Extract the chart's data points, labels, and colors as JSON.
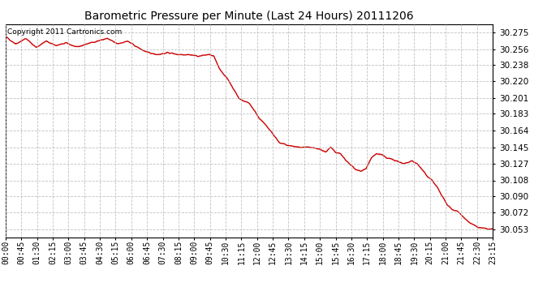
{
  "title": "Barometric Pressure per Minute (Last 24 Hours) 20111206",
  "copyright": "Copyright 2011 Cartronics.com",
  "line_color": "#cc0000",
  "background_color": "#ffffff",
  "plot_bg_color": "#ffffff",
  "grid_color": "#bbbbbb",
  "grid_style": "--",
  "ylim": [
    30.044,
    30.284
  ],
  "yticks": [
    30.275,
    30.256,
    30.238,
    30.22,
    30.201,
    30.183,
    30.164,
    30.145,
    30.127,
    30.108,
    30.09,
    30.072,
    30.053
  ],
  "xtick_labels": [
    "00:00",
    "00:45",
    "01:30",
    "02:15",
    "03:00",
    "03:45",
    "04:30",
    "05:15",
    "06:00",
    "06:45",
    "07:30",
    "08:15",
    "09:00",
    "09:45",
    "10:30",
    "11:15",
    "12:00",
    "12:45",
    "13:30",
    "14:15",
    "15:00",
    "15:45",
    "16:30",
    "17:15",
    "18:00",
    "18:45",
    "19:30",
    "20:15",
    "21:00",
    "21:45",
    "22:30",
    "23:15"
  ],
  "n_points": 1440,
  "seed": 42
}
